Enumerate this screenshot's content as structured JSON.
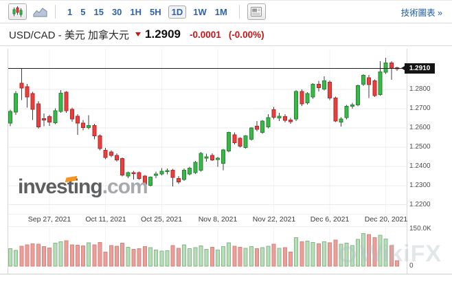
{
  "toolbar": {
    "icons": {
      "candlestick": "candlestick-chart-icon",
      "line": "line-chart-icon",
      "news": "news-panel-icon"
    },
    "chart_type_selected": "candlestick",
    "timeframes": [
      "1",
      "5",
      "15",
      "30",
      "1H",
      "5H",
      "1D",
      "1W",
      "1M"
    ],
    "selected_timeframe": "1D",
    "link": "技術圖表 »"
  },
  "header": {
    "pair": "USD/CAD - 美元 加拿大元",
    "price": "1.2909",
    "change": "-0.0001",
    "change_pct": "(-0.00%)",
    "direction": "down"
  },
  "watermarks": {
    "investing": "investing",
    "investing_suffix": ".com",
    "wikifx": "WikiFX"
  },
  "chart_data": {
    "type": "candlestick",
    "symbol": "USD/CAD",
    "grid": true,
    "legend": false,
    "previous_close": 1.291,
    "price_axis": {
      "current_price_tag": "1.2910",
      "ticks": [
        "1.2800",
        "1.2700",
        "1.2600",
        "1.2500",
        "1.2400",
        "1.2300",
        "1.2200"
      ],
      "range": [
        1.22,
        1.3
      ]
    },
    "volume_axis": {
      "ticks": [
        "150.0K",
        "0"
      ],
      "max_k": 150
    },
    "x_ticks": [
      {
        "label": "Sep 27, 2021",
        "index": 7
      },
      {
        "label": "Oct 11, 2021",
        "index": 17
      },
      {
        "label": "Oct 25, 2021",
        "index": 27
      },
      {
        "label": "Nov 8, 2021",
        "index": 37
      },
      {
        "label": "Nov 22, 2021",
        "index": 47
      },
      {
        "label": "Dec 6, 2021",
        "index": 57
      },
      {
        "label": "Dec 20, 2021",
        "index": 67
      }
    ],
    "colors": {
      "up": "#3cb549",
      "up_border": "#1f8a2f",
      "down": "#e8403c",
      "down_border": "#b3282d",
      "wick": "#3d3d3d",
      "vol_up": "#b9dcba",
      "vol_up_border": "#85b988",
      "vol_down": "#eb9f9b",
      "vol_down_border": "#d6837e",
      "prev_close_line": "#1c1c1c",
      "accent_red": "#cc1414",
      "toolbar_blue": "#2f63a4"
    },
    "candles": [
      [
        "Sep 16",
        1.2625,
        1.2695,
        1.2608,
        1.2686,
        72
      ],
      [
        "Sep 17",
        1.2682,
        1.2791,
        1.2668,
        1.2779,
        65
      ],
      [
        "Sep 20",
        1.2832,
        1.2907,
        1.2744,
        1.2807,
        82
      ],
      [
        "Sep 21",
        1.2814,
        1.2828,
        1.2705,
        1.2761,
        88
      ],
      [
        "Sep 22",
        1.2779,
        1.2788,
        1.2641,
        1.2697,
        92
      ],
      [
        "Sep 23",
        1.2725,
        1.2739,
        1.2596,
        1.2605,
        90
      ],
      [
        "Sep 24",
        1.2648,
        1.2674,
        1.2608,
        1.2641,
        80
      ],
      [
        "Sep 27",
        1.2659,
        1.2668,
        1.2611,
        1.263,
        75
      ],
      [
        "Sep 28",
        1.2626,
        1.2701,
        1.2619,
        1.2689,
        95
      ],
      [
        "Sep 29",
        1.2686,
        1.2796,
        1.2678,
        1.2781,
        100
      ],
      [
        "Sep 30",
        1.2785,
        1.2791,
        1.2678,
        1.2689,
        105
      ],
      [
        "Oct 1",
        1.2697,
        1.2706,
        1.2632,
        1.2647,
        88
      ],
      [
        "Oct 4",
        1.2661,
        1.2671,
        1.2564,
        1.2625,
        86
      ],
      [
        "Oct 5",
        1.2625,
        1.2641,
        1.2588,
        1.2601,
        84
      ],
      [
        "Oct 6",
        1.2601,
        1.2665,
        1.2592,
        1.2612,
        96
      ],
      [
        "Oct 7",
        1.2612,
        1.2622,
        1.2541,
        1.2558,
        88
      ],
      [
        "Oct 8",
        1.2558,
        1.2566,
        1.2483,
        1.2492,
        98
      ],
      [
        "Oct 11",
        1.2483,
        1.2495,
        1.2436,
        1.2446,
        58
      ],
      [
        "Oct 12",
        1.2475,
        1.2483,
        1.2448,
        1.2457,
        85
      ],
      [
        "Oct 13",
        1.2457,
        1.2468,
        1.2424,
        1.2433,
        82
      ],
      [
        "Oct 14",
        1.244,
        1.2445,
        1.2348,
        1.2355,
        95
      ],
      [
        "Oct 15",
        1.2349,
        1.2372,
        1.2338,
        1.2367,
        78
      ],
      [
        "Oct 18",
        1.2367,
        1.2376,
        1.2331,
        1.2362,
        70
      ],
      [
        "Oct 19",
        1.2367,
        1.2372,
        1.233,
        1.2337,
        72
      ],
      [
        "Oct 20",
        1.2349,
        1.2355,
        1.2284,
        1.2307,
        80
      ],
      [
        "Oct 21",
        1.2301,
        1.2348,
        1.2295,
        1.2343,
        76
      ],
      [
        "Oct 22",
        1.2352,
        1.2373,
        1.2338,
        1.236,
        66
      ],
      [
        "Oct 25",
        1.236,
        1.2391,
        1.2352,
        1.2375,
        62
      ],
      [
        "Oct 26",
        1.2375,
        1.2388,
        1.2358,
        1.2378,
        64
      ],
      [
        "Oct 27",
        1.2379,
        1.2386,
        1.2295,
        1.2343,
        85
      ],
      [
        "Oct 28",
        1.2336,
        1.235,
        1.2308,
        1.2318,
        74
      ],
      [
        "Oct 29",
        1.2331,
        1.2388,
        1.2324,
        1.2379,
        88
      ],
      [
        "Nov 1",
        1.236,
        1.2398,
        1.2352,
        1.239,
        72
      ],
      [
        "Nov 2",
        1.2367,
        1.2428,
        1.236,
        1.2421,
        76
      ],
      [
        "Nov 3",
        1.2379,
        1.2475,
        1.2372,
        1.2468,
        84
      ],
      [
        "Nov 4",
        1.2443,
        1.2465,
        1.2425,
        1.245,
        70
      ],
      [
        "Nov 5",
        1.2457,
        1.2468,
        1.2428,
        1.2433,
        78
      ],
      [
        "Nov 8",
        1.2436,
        1.2449,
        1.2397,
        1.2442,
        66
      ],
      [
        "Nov 9",
        1.2415,
        1.249,
        1.2379,
        1.2486,
        80
      ],
      [
        "Nov 10",
        1.248,
        1.258,
        1.2472,
        1.2576,
        96
      ],
      [
        "Nov 11",
        1.2564,
        1.2576,
        1.2514,
        1.2522,
        82
      ],
      [
        "Nov 12",
        1.2546,
        1.2552,
        1.2498,
        1.2504,
        78
      ],
      [
        "Nov 15",
        1.2498,
        1.2562,
        1.2492,
        1.2558,
        74
      ],
      [
        "Nov 16",
        1.254,
        1.2604,
        1.2534,
        1.26,
        80
      ],
      [
        "Nov 17",
        1.2608,
        1.2635,
        1.2581,
        1.2592,
        72
      ],
      [
        "Nov 18",
        1.2576,
        1.264,
        1.257,
        1.2635,
        76
      ],
      [
        "Nov 19",
        1.2605,
        1.2671,
        1.2598,
        1.2653,
        82
      ],
      [
        "Nov 22",
        1.2695,
        1.2708,
        1.2645,
        1.2655,
        90
      ],
      [
        "Nov 23",
        1.2652,
        1.2678,
        1.2636,
        1.2661,
        74
      ],
      [
        "Nov 24",
        1.2659,
        1.2671,
        1.2629,
        1.2639,
        76
      ],
      [
        "Nov 25",
        1.2641,
        1.2652,
        1.2622,
        1.2632,
        58
      ],
      [
        "Nov 26",
        1.2647,
        1.2796,
        1.2635,
        1.279,
        118
      ],
      [
        "Nov 29",
        1.279,
        1.28,
        1.2715,
        1.2725,
        100
      ],
      [
        "Nov 30",
        1.2731,
        1.2785,
        1.2722,
        1.2779,
        104
      ],
      [
        "Dec 1",
        1.2761,
        1.2832,
        1.2752,
        1.2826,
        98
      ],
      [
        "Dec 2",
        1.2826,
        1.2845,
        1.279,
        1.2808,
        92
      ],
      [
        "Dec 3",
        1.2802,
        1.2868,
        1.2795,
        1.2844,
        100
      ],
      [
        "Dec 6",
        1.2838,
        1.2846,
        1.2745,
        1.2755,
        96
      ],
      [
        "Dec 7",
        1.2755,
        1.2762,
        1.263,
        1.2635,
        108
      ],
      [
        "Dec 8",
        1.263,
        1.2655,
        1.2606,
        1.2647,
        90
      ],
      [
        "Dec 9",
        1.2653,
        1.272,
        1.2645,
        1.2713,
        95
      ],
      [
        "Dec 10",
        1.2713,
        1.273,
        1.27,
        1.2719,
        85
      ],
      [
        "Dec 13",
        1.2719,
        1.2825,
        1.2712,
        1.282,
        110
      ],
      [
        "Dec 14",
        1.2826,
        1.2878,
        1.2818,
        1.2873,
        135
      ],
      [
        "Dec 15",
        1.2861,
        1.2875,
        1.2755,
        1.2826,
        130
      ],
      [
        "Dec 16",
        1.2844,
        1.2852,
        1.276,
        1.2767,
        118
      ],
      [
        "Dec 17",
        1.2773,
        1.2946,
        1.2768,
        1.2892,
        128
      ],
      [
        "Dec 20",
        1.289,
        1.2964,
        1.288,
        1.2938,
        112
      ],
      [
        "Dec 21",
        1.2938,
        1.2946,
        1.285,
        1.291,
        85
      ],
      [
        "Dec 22",
        1.2912,
        1.2918,
        1.2896,
        1.2909,
        22
      ]
    ]
  }
}
